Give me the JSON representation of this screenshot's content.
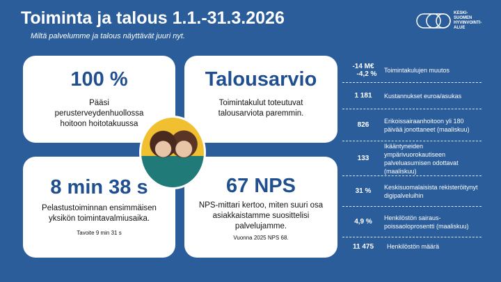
{
  "header": {
    "title": "Toiminta ja talous 1.1.-31.3.2026",
    "subtitle": "Miltä palvelumme ja talous näyttävät juuri nyt."
  },
  "logo": {
    "text": "KESKI-SUOMEN HYVINVOINTI-ALUE",
    "lines": [
      "KESKI-",
      "SUOMEN",
      "HYVINVOINTI-",
      "ALUE"
    ]
  },
  "cards": [
    {
      "big": "100 %",
      "desc": "Pääsi perusterveydenhuollossa hoitoon hoitotakuussa",
      "small": ""
    },
    {
      "big": "Talousarvio",
      "desc": "Toimintakulut toteutuvat talousarviota paremmin.",
      "small": ""
    },
    {
      "big": "8 min 38 s",
      "desc": "Pelastustoiminnan ensimmäisen yksikön toimintavalmiusaika.",
      "small": "Tavoite 9 min 31 s"
    },
    {
      "big": "67 NPS",
      "desc": "NPS-mittari kertoo, miten suuri osa asiakkaistamme suosittelisi palvelujamme.",
      "small": "Vuonna 2025 NPS 68."
    }
  ],
  "stats": [
    {
      "value": "-14 M€",
      "value2": "-4,2 %",
      "label": "Toimintakulujen muutos"
    },
    {
      "value": "1 181",
      "label": "Kustannukset euroa/asukas"
    },
    {
      "value": "826",
      "label": "Erikoissairaanhoitoon yli 180 päivää jonottaneet (maaliskuu)"
    },
    {
      "value": "133",
      "label": "Ikääntyneiden ympärivuorokautiseen palveluasumisen odottavat (maaliskuu)"
    },
    {
      "value": "31 %",
      "label": "Keskisuomalaisista rekisteröitynyt digipalveluihin"
    },
    {
      "value": "4,9 %",
      "label": "Henkilöstön sairaus-poissaoloprosentti (maaliskuu)"
    },
    {
      "value": "11 475",
      "label": "Henkilöstön määrä"
    }
  ],
  "colors": {
    "background": "#2b5d9b",
    "accent": "#1f4f8e"
  }
}
